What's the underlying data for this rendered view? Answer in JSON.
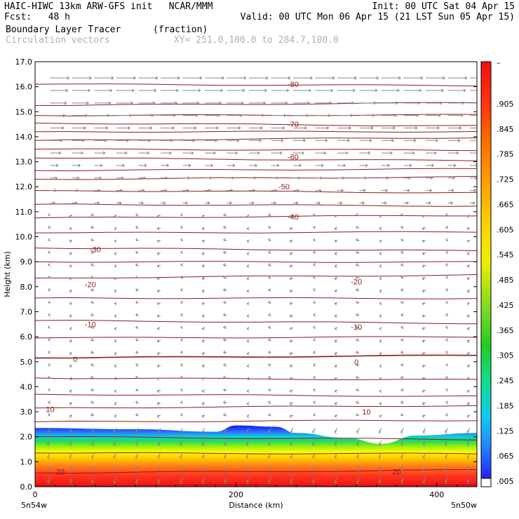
{
  "header": {
    "line1_left": "HAIC-HIWC 13km ARW-GFS init   NCAR/MMM",
    "line1_right": "Init: 00 UTC Sat 04 Apr 15",
    "line2_left": "Fcst:   48 h",
    "line2_right": "Valid: 00 UTC Mon 06 Apr 15 (21 LST Sun 05 Apr 15)",
    "line3_field": "Boundary Layer Tracer",
    "line3_units": "(fraction)",
    "line4_overlay": "Circulation vectors",
    "line4_xy": "XY= 251.0,100.0 to 284.7,100.0"
  },
  "axes": {
    "ylabel": "Height (km)",
    "xlabel": "Distance (km)",
    "x_left_label": "5n54w",
    "x_right_label": "5n50w"
  },
  "colorbar": {
    "top_label": "–",
    "labels": [
      ".905",
      ".845",
      ".785",
      ".725",
      ".665",
      ".605",
      ".545",
      ".485",
      ".425",
      ".365",
      ".305",
      ".245",
      ".185",
      ".125",
      ".065",
      ".005"
    ]
  },
  "colors": {
    "frame": "#000000",
    "isotherm": "#8b1a1a",
    "vector": "#888888"
  },
  "chart_data": {
    "type": "heatmap",
    "title": "Boundary Layer Tracer",
    "xlabel": "Distance (km)",
    "ylabel": "Height (km)",
    "xlim": [
      0,
      440
    ],
    "ylim": [
      0,
      17
    ],
    "x_ticks": [
      0,
      200,
      400
    ],
    "y_ticks": [
      "0.0",
      "1.0",
      "2.0",
      "3.0",
      "4.0",
      "5.0",
      "6.0",
      "7.0",
      "8.0",
      "9.0",
      "10.0",
      "11.0",
      "12.0",
      "13.0",
      "14.0",
      "15.0",
      "16.0",
      "17.0"
    ],
    "colorbar_range": [
      0.005,
      0.965
    ],
    "tracer_top_km": [
      {
        "x": 0,
        "z": 2.35
      },
      {
        "x": 100,
        "z": 2.3
      },
      {
        "x": 180,
        "z": 2.2
      },
      {
        "x": 200,
        "z": 2.45
      },
      {
        "x": 240,
        "z": 2.4
      },
      {
        "x": 260,
        "z": 2.15
      },
      {
        "x": 310,
        "z": 1.95
      },
      {
        "x": 345,
        "z": 1.72
      },
      {
        "x": 380,
        "z": 2.05
      },
      {
        "x": 440,
        "z": 2.15
      }
    ],
    "isotherm_labels": [
      {
        "value": "-80",
        "x": 257,
        "z": 16.1
      },
      {
        "value": "-70",
        "x": 257,
        "z": 14.5
      },
      {
        "value": "-60",
        "x": 257,
        "z": 13.2
      },
      {
        "value": "-50",
        "x": 248,
        "z": 12.0
      },
      {
        "value": "-40",
        "x": 257,
        "z": 10.8
      },
      {
        "value": "-30",
        "x": 60,
        "z": 9.5
      },
      {
        "value": "-20",
        "x": 55,
        "z": 8.1
      },
      {
        "value": "-20",
        "x": 320,
        "z": 8.2
      },
      {
        "value": "-10",
        "x": 55,
        "z": 6.5
      },
      {
        "value": "-10",
        "x": 320,
        "z": 6.4
      },
      {
        "value": "0",
        "x": 40,
        "z": 5.1
      },
      {
        "value": "0",
        "x": 320,
        "z": 5.0
      },
      {
        "value": "10",
        "x": 15,
        "z": 3.1
      },
      {
        "value": "10",
        "x": 330,
        "z": 3.0
      },
      {
        "value": "20",
        "x": 25,
        "z": 0.6
      },
      {
        "value": "20",
        "x": 360,
        "z": 0.6
      }
    ],
    "isotherm_heights_km": [
      0.05,
      0.55,
      1.35,
      2.0,
      2.6,
      3.15,
      3.7,
      4.35,
      5.15,
      5.95,
      6.65,
      7.55,
      8.35,
      9.0,
      9.55,
      10.15,
      10.75,
      11.3,
      11.85,
      12.3,
      12.65,
      13.15,
      13.5,
      13.85,
      14.2,
      14.55,
      14.85,
      15.25,
      16.1
    ]
  }
}
